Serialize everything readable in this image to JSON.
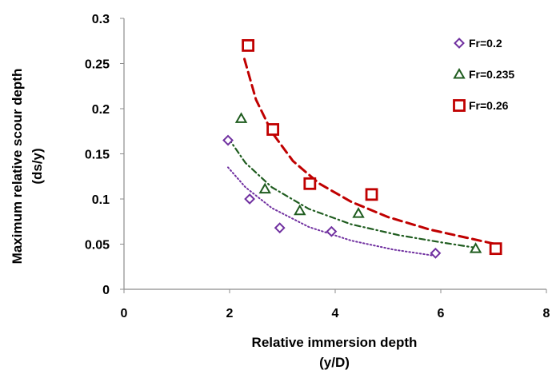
{
  "chart_data": {
    "type": "scatter",
    "xlabel_lines": [
      "Relative immersion depth",
      "(y/D)"
    ],
    "ylabel_lines": [
      "Maximum relative scour depth",
      "(ds/y)"
    ],
    "xlim": [
      0,
      8
    ],
    "ylim": [
      0,
      0.3
    ],
    "x_ticks": [
      0,
      2,
      4,
      6,
      8
    ],
    "x_tick_labels": [
      "0",
      "2",
      "4",
      "6",
      "8"
    ],
    "y_ticks": [
      0,
      0.05,
      0.1,
      0.15,
      0.2,
      0.25,
      0.3
    ],
    "y_tick_labels": [
      "0",
      "0.05",
      "0.1",
      "0.15",
      "0.2",
      "0.25",
      "0.3"
    ],
    "grid": false,
    "legend_position": "top-right",
    "series": [
      {
        "name": "Fr=0.2",
        "marker": "diamond",
        "color": "#7030A0",
        "trend_style": "dotted",
        "x": [
          1.97,
          2.38,
          2.95,
          3.93,
          5.9
        ],
        "y": [
          0.165,
          0.1,
          0.068,
          0.064,
          0.04
        ],
        "trend": {
          "x": [
            1.97,
            2.3,
            2.8,
            3.5,
            4.3,
            5.1,
            5.9
          ],
          "y": [
            0.135,
            0.113,
            0.09,
            0.069,
            0.054,
            0.044,
            0.037
          ]
        }
      },
      {
        "name": "Fr=0.235",
        "marker": "triangle",
        "color": "#1F5C1F",
        "trend_style": "dashdot",
        "x": [
          2.22,
          2.67,
          3.33,
          4.44,
          6.66
        ],
        "y": [
          0.189,
          0.111,
          0.087,
          0.084,
          0.045
        ],
        "trend": {
          "x": [
            1.97,
            2.3,
            2.8,
            3.5,
            4.3,
            5.2,
            6.0,
            6.66
          ],
          "y": [
            0.168,
            0.14,
            0.113,
            0.089,
            0.072,
            0.06,
            0.052,
            0.046
          ]
        }
      },
      {
        "name": "Fr=0.26",
        "marker": "square",
        "color": "#C00000",
        "trend_style": "dashed",
        "x": [
          2.35,
          2.82,
          3.52,
          4.69,
          7.04
        ],
        "y": [
          0.27,
          0.177,
          0.117,
          0.105,
          0.045
        ],
        "trend": {
          "x": [
            2.28,
            2.5,
            2.8,
            3.2,
            3.7,
            4.3,
            5.0,
            5.8,
            6.5,
            7.04
          ],
          "y": [
            0.255,
            0.21,
            0.174,
            0.142,
            0.117,
            0.097,
            0.08,
            0.066,
            0.057,
            0.05
          ]
        }
      }
    ]
  }
}
